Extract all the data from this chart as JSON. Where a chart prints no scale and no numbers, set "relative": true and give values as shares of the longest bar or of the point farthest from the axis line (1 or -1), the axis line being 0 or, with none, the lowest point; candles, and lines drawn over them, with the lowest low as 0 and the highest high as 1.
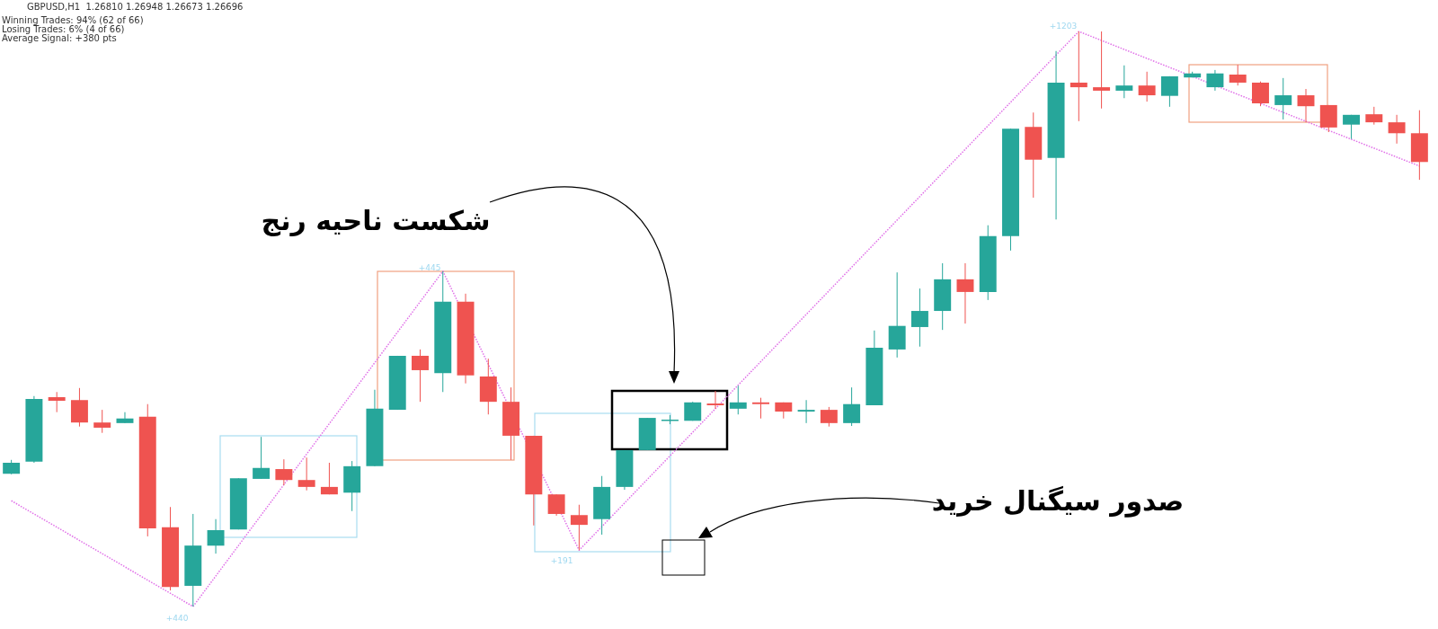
{
  "chart_data": [
    {
      "type": "candlestick",
      "relative": true,
      "title": "GBPUSD,H1  1.26810 1.26948 1.26673 1.26696",
      "annotations": [
        "Winning Trades: 94% (62 of 66)",
        "Losing Trades: 6% (4 of 66)",
        "Average Signal: +380 pts",
        "+440",
        "+445",
        "+191",
        "+1203",
        "شکست ناحیه رنج",
        "صدور سیگنال خرید"
      ],
      "categories": [
        null,
        null,
        null,
        null,
        null,
        null,
        null,
        null,
        null,
        null,
        null,
        null,
        null,
        null,
        null,
        null,
        null,
        null,
        null,
        null,
        null,
        null,
        null,
        null,
        null,
        null,
        null,
        null,
        null,
        null,
        null,
        null,
        null,
        null,
        null,
        null,
        null,
        null,
        null,
        null,
        null,
        null,
        null,
        null,
        null,
        null,
        null,
        null,
        null,
        null,
        null,
        null,
        null,
        null,
        null,
        null,
        null,
        null,
        null,
        null,
        null,
        null,
        null
      ],
      "ohlc": [
        [
          0.231,
          0.255,
          0.23,
          0.25
        ],
        [
          0.252,
          0.366,
          0.25,
          0.361
        ],
        [
          0.364,
          0.373,
          0.338,
          0.358
        ],
        [
          0.359,
          0.38,
          0.313,
          0.32
        ],
        [
          0.32,
          0.342,
          0.302,
          0.311
        ],
        [
          0.319,
          0.338,
          0.319,
          0.327
        ],
        [
          0.33,
          0.352,
          0.122,
          0.136
        ],
        [
          0.138,
          0.173,
          0.028,
          0.034
        ],
        [
          0.036,
          0.161,
          0,
          0.106
        ],
        [
          0.106,
          0.152,
          0.092,
          0.133
        ],
        [
          0.134,
          0.223,
          0.134,
          0.223
        ],
        [
          0.222,
          0.295,
          0.222,
          0.241
        ],
        [
          0.239,
          0.256,
          0.211,
          0.22
        ],
        [
          0.22,
          0.259,
          0.202,
          0.208
        ],
        [
          0.208,
          0.25,
          0.195,
          0.195
        ],
        [
          0.198,
          0.253,
          0.166,
          0.244
        ],
        [
          0.244,
          0.377,
          0.244,
          0.344
        ],
        [
          0.342,
          0.436,
          0.342,
          0.436
        ],
        [
          0.436,
          0.447,
          0.356,
          0.411
        ],
        [
          0.406,
          0.583,
          0.373,
          0.53
        ],
        [
          0.53,
          0.544,
          0.388,
          0.402
        ],
        [
          0.4,
          0.431,
          0.334,
          0.356
        ],
        [
          0.356,
          0.381,
          0.255,
          0.297
        ],
        [
          0.297,
          0.297,
          0.141,
          0.195
        ],
        [
          0.195,
          0.195,
          0.158,
          0.161
        ],
        [
          0.159,
          0.177,
          0.098,
          0.142
        ],
        [
          0.152,
          0.227,
          0.125,
          0.208
        ],
        [
          0.208,
          0.272,
          0.203,
          0.272
        ],
        [
          0.272,
          0.328,
          0.272,
          0.328
        ],
        [
          0.323,
          0.333,
          0.317,
          0.325
        ],
        [
          0.323,
          0.356,
          0.323,
          0.355
        ],
        [
          0.353,
          0.375,
          0.344,
          0.35
        ],
        [
          0.344,
          0.384,
          0.334,
          0.355
        ],
        [
          0.355,
          0.363,
          0.327,
          0.352
        ],
        [
          0.355,
          0.355,
          0.327,
          0.339
        ],
        [
          0.339,
          0.359,
          0.319,
          0.342
        ],
        [
          0.342,
          0.347,
          0.313,
          0.319
        ],
        [
          0.319,
          0.381,
          0.314,
          0.352
        ],
        [
          0.35,
          0.48,
          0.35,
          0.45
        ],
        [
          0.447,
          0.581,
          0.433,
          0.488
        ],
        [
          0.486,
          0.553,
          0.452,
          0.514
        ],
        [
          0.514,
          0.597,
          0.481,
          0.569
        ],
        [
          0.569,
          0.597,
          0.492,
          0.547
        ],
        [
          0.547,
          0.663,
          0.533,
          0.644
        ],
        [
          0.644,
          0.831,
          0.619,
          0.831
        ],
        [
          0.834,
          0.859,
          0.711,
          0.777
        ],
        [
          0.78,
          0.966,
          0.673,
          0.911
        ],
        [
          0.911,
          1,
          0.844,
          0.903
        ],
        [
          0.903,
          1,
          0.866,
          0.897
        ],
        [
          0.897,
          0.941,
          0.884,
          0.906
        ],
        [
          0.906,
          0.93,
          0.878,
          0.889
        ],
        [
          0.888,
          0.922,
          0.869,
          0.922
        ],
        [
          0.92,
          0.93,
          0.92,
          0.927
        ],
        [
          0.903,
          0.933,
          0.897,
          0.927
        ],
        [
          0.925,
          0.942,
          0.906,
          0.911
        ],
        [
          0.911,
          0.913,
          0.87,
          0.875
        ],
        [
          0.872,
          0.919,
          0.847,
          0.889
        ],
        [
          0.889,
          0.9,
          0.842,
          0.87
        ],
        [
          0.872,
          0.872,
          0.825,
          0.833
        ],
        [
          0.838,
          0.855,
          0.813,
          0.855
        ],
        [
          0.856,
          0.869,
          0.838,
          0.842
        ],
        [
          0.842,
          0.855,
          0.805,
          0.823
        ],
        [
          0.823,
          0.863,
          0.742,
          0.773
        ]
      ],
      "colors": [
        "#26a69a",
        "#26a69a",
        "#ef5350",
        "#ef5350",
        "#ef5350",
        "#26a69a",
        "#ef5350",
        "#ef5350",
        "#26a69a",
        "#26a69a",
        "#26a69a",
        "#26a69a",
        "#ef5350",
        "#ef5350",
        "#ef5350",
        "#26a69a",
        "#26a69a",
        "#26a69a",
        "#ef5350",
        "#26a69a",
        "#ef5350",
        "#ef5350",
        "#ef5350",
        "#ef5350",
        "#ef5350",
        "#ef5350",
        "#26a69a",
        "#26a69a",
        "#26a69a",
        "#26a69a",
        "#26a69a",
        "#ef5350",
        "#26a69a",
        "#ef5350",
        "#ef5350",
        "#26a69a",
        "#ef5350",
        "#26a69a",
        "#26a69a",
        "#26a69a",
        "#26a69a",
        "#26a69a",
        "#ef5350",
        "#26a69a",
        "#26a69a",
        "#ef5350",
        "#26a69a",
        "#ef5350",
        "#ef5350",
        "#26a69a",
        "#ef5350",
        "#26a69a",
        "#26a69a",
        "#26a69a",
        "#ef5350",
        "#ef5350",
        "#26a69a",
        "#ef5350",
        "#ef5350",
        "#26a69a",
        "#ef5350",
        "#ef5350",
        "#ef5350"
      ]
    },
    {
      "type": "line",
      "relative": true,
      "categories": [
        null,
        null,
        null,
        null,
        null,
        null,
        null,
        null,
        null,
        null,
        null,
        null,
        null,
        null,
        null,
        null,
        null,
        null,
        null,
        null,
        null,
        null,
        null,
        null,
        null,
        null,
        null,
        null,
        null,
        null,
        null,
        null,
        null,
        null,
        null,
        null,
        null,
        null,
        null,
        null,
        null,
        null,
        null,
        null,
        null,
        null,
        null,
        null,
        null,
        null,
        null,
        null,
        null,
        null,
        null,
        null,
        null,
        null,
        null,
        null,
        null,
        null,
        null
      ],
      "series": [
        {
          "color": "#e070e8",
          "line_style": "dotted",
          "values": [
            0.184,
            null,
            null,
            null,
            null,
            null,
            null,
            null,
            0,
            null,
            null,
            null,
            null,
            null,
            null,
            null,
            null,
            null,
            null,
            0.583,
            null,
            null,
            null,
            null,
            null,
            0.098,
            null,
            null,
            null,
            null,
            null,
            null,
            null,
            null,
            null,
            null,
            null,
            null,
            null,
            null,
            null,
            null,
            null,
            null,
            null,
            null,
            null,
            1,
            null,
            null,
            null,
            null,
            null,
            null,
            null,
            null,
            null,
            null,
            0.828,
            null,
            null,
            null,
            0.766
          ]
        }
      ]
    }
  ]
}
